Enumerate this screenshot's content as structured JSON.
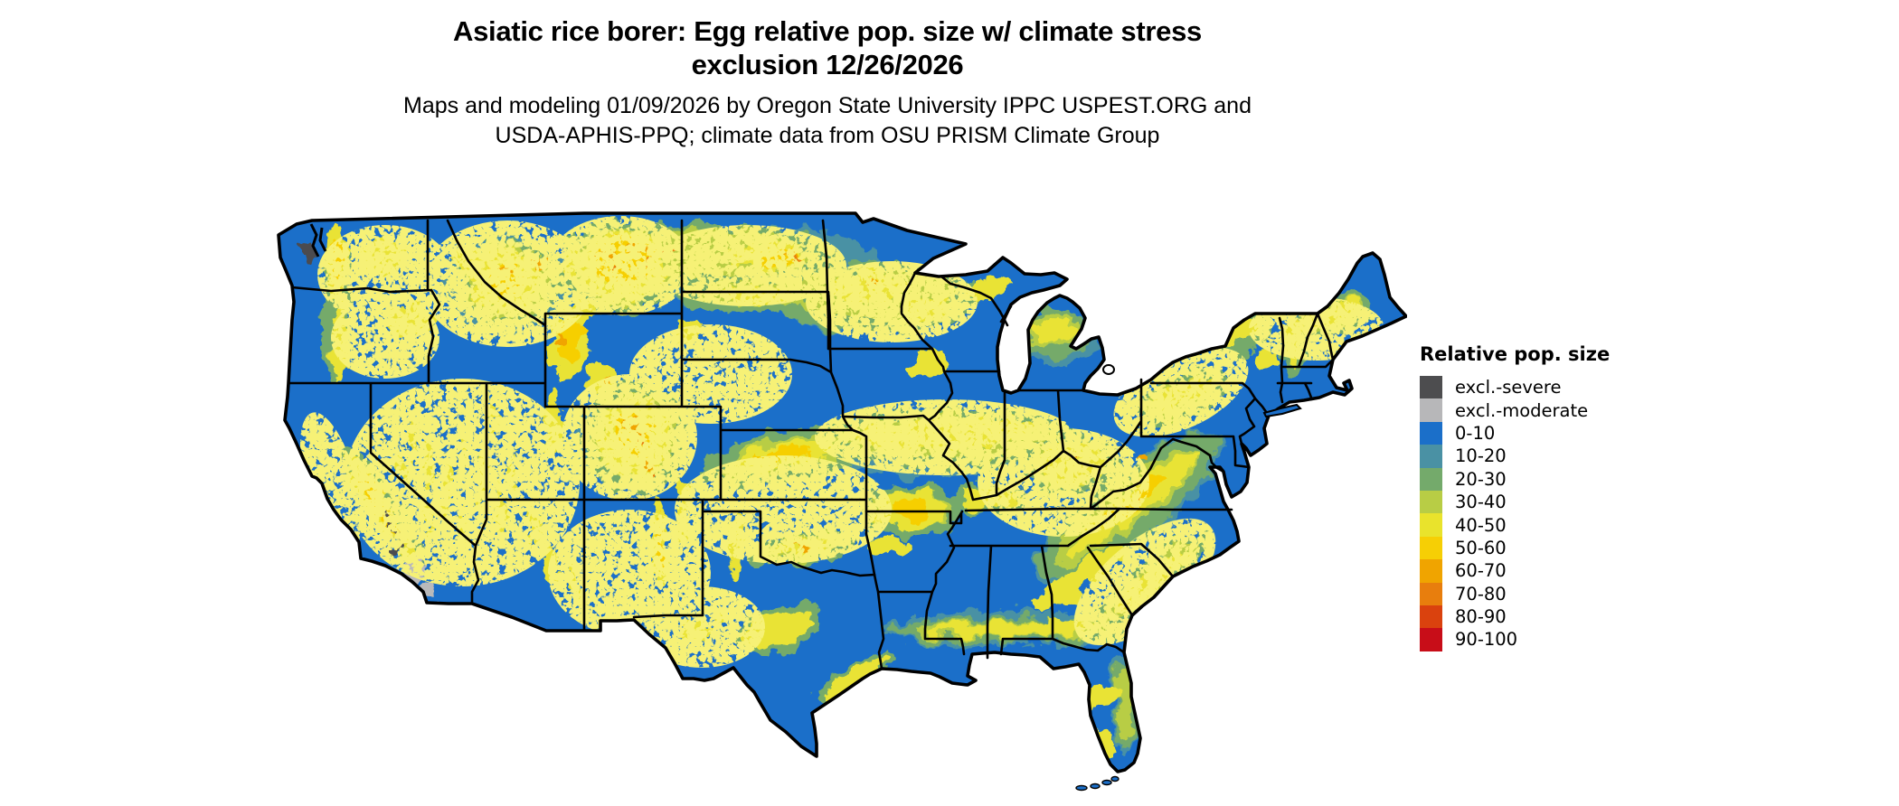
{
  "header": {
    "title_line1": "Asiatic rice borer: Egg relative pop. size w/ climate stress",
    "title_line2": "exclusion 12/26/2026",
    "subtitle_line1": "Maps and modeling 01/09/2026 by Oregon State University IPPC USPEST.ORG and",
    "subtitle_line2": "USDA-APHIS-PPQ; climate data from OSU PRISM Climate Group"
  },
  "legend": {
    "title": "Relative pop. size",
    "items": [
      {
        "label": "excl.-severe",
        "color": "#4d4d4f"
      },
      {
        "label": "excl.-moderate",
        "color": "#b7b7b9"
      },
      {
        "label": "0-10",
        "color": "#1b6fc9"
      },
      {
        "label": "10-20",
        "color": "#4a91a4"
      },
      {
        "label": "20-30",
        "color": "#74aa6b"
      },
      {
        "label": "30-40",
        "color": "#b8cd45"
      },
      {
        "label": "40-50",
        "color": "#e9e32c"
      },
      {
        "label": "50-60",
        "color": "#f6cf05"
      },
      {
        "label": "60-70",
        "color": "#f0a400"
      },
      {
        "label": "70-80",
        "color": "#e87e0d"
      },
      {
        "label": "80-90",
        "color": "#da420e"
      },
      {
        "label": "90-100",
        "color": "#c80d18"
      }
    ]
  },
  "map": {
    "water_color": "#ffffff",
    "base_fill": "#1b6fc9",
    "border_color": "#000000"
  }
}
